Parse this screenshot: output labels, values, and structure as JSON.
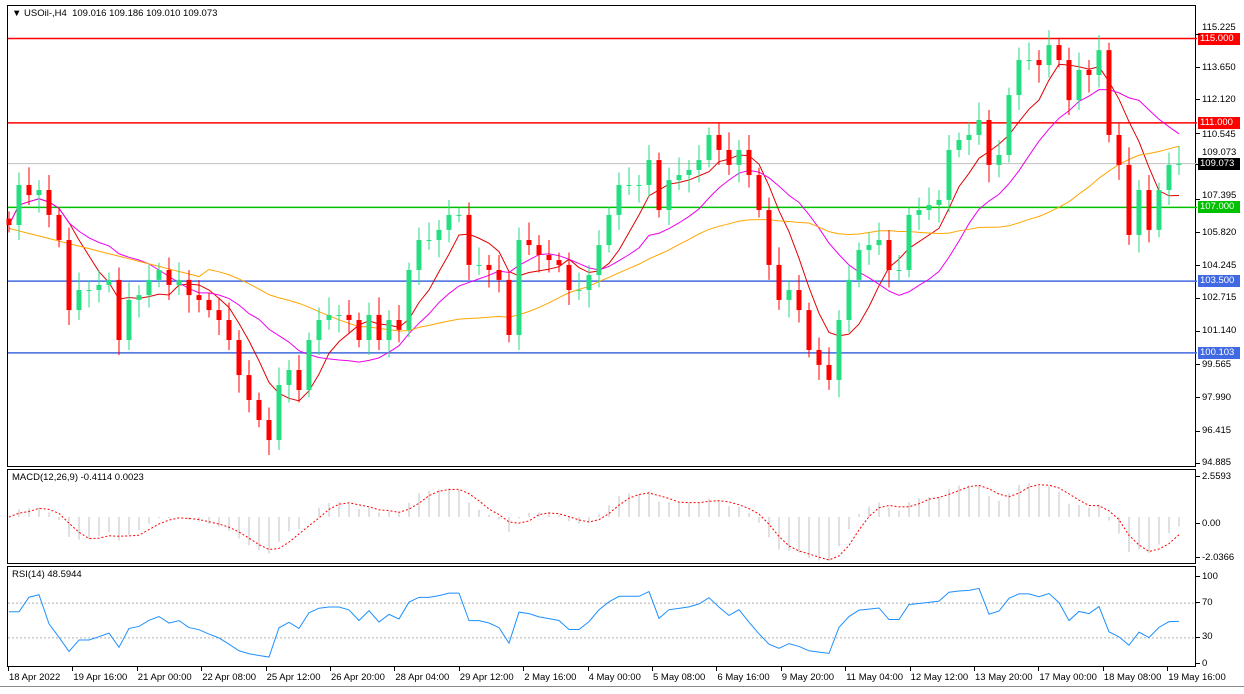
{
  "header": {
    "symbol": "USOil-,H4",
    "open": "109.016",
    "high": "109.186",
    "low": "109.010",
    "close": "109.073"
  },
  "colors": {
    "bull": "#26de81",
    "bear": "#ff0000",
    "ma_fast": "#e00000",
    "ma_mid": "#ee00ee",
    "ma_slow": "#ffa500",
    "macd_signal": "#ff0000",
    "macd_hist": "#c0c0c0",
    "rsi": "#1e90ff",
    "current": "#c0c0c0"
  },
  "price_axis": {
    "ticks": [
      "115.225",
      "113.650",
      "112.120",
      "110.545",
      "109.073",
      "107.395",
      "105.820",
      "104.245",
      "102.715",
      "101.140",
      "99.565",
      "97.990",
      "96.415",
      "94.885"
    ],
    "range": [
      94.885,
      115.225
    ]
  },
  "levels": [
    {
      "price": 115.0,
      "label": "115.000",
      "color": "#ff0000"
    },
    {
      "price": 111.0,
      "label": "111.000",
      "color": "#ff0000"
    },
    {
      "price": 107.0,
      "label": "107.000",
      "color": "#00c000"
    },
    {
      "price": 103.5,
      "label": "103.500",
      "color": "#4169e1"
    },
    {
      "price": 100.103,
      "label": "100.103",
      "color": "#4169e1"
    }
  ],
  "current_price": {
    "price": 109.073,
    "label": "109.073"
  },
  "macd": {
    "title": "MACD(12,26,9) -0.4114 0.0023",
    "ticks": [
      "2.5593",
      "0.00",
      "-2.0366"
    ]
  },
  "rsi": {
    "title": "RSI(14) 48.5944",
    "ticks": [
      "100",
      "70",
      "30",
      "0"
    ],
    "levels": [
      70,
      30
    ]
  },
  "time_axis": [
    "18 Apr 2022",
    "19 Apr 16:00",
    "21 Apr 00:00",
    "22 Apr 08:00",
    "25 Apr 12:00",
    "26 Apr 20:00",
    "28 Apr 04:00",
    "29 Apr 12:00",
    "2 May 16:00",
    "4 May 00:00",
    "5 May 08:00",
    "6 May 16:00",
    "9 May 20:00",
    "11 May 04:00",
    "12 May 12:00",
    "13 May 20:00",
    "17 May 00:00",
    "18 May 08:00",
    "19 May 16:00"
  ],
  "chart_data": {
    "type": "candlestick",
    "symbol": "USOil-",
    "timeframe": "H4",
    "closes": [
      106.16,
      108.06,
      107.58,
      107.82,
      106.64,
      105.45,
      102.13,
      103.08,
      103.08,
      103.32,
      103.56,
      100.71,
      102.61,
      102.84,
      103.56,
      104.03,
      103.32,
      103.56,
      102.84,
      102.61,
      102.13,
      101.66,
      100.71,
      99.05,
      97.87,
      96.92,
      95.97,
      98.58,
      99.29,
      98.34,
      100.71,
      101.66,
      101.9,
      101.9,
      101.66,
      100.71,
      101.9,
      100.71,
      101.66,
      101.19,
      104.03,
      105.45,
      105.45,
      105.93,
      106.64,
      106.64,
      104.27,
      104.27,
      104.03,
      103.56,
      100.95,
      105.45,
      105.21,
      104.74,
      104.5,
      104.27,
      103.08,
      103.08,
      103.79,
      105.21,
      106.64,
      108.06,
      108.06,
      108.06,
      109.24,
      106.87,
      108.29,
      108.53,
      108.77,
      109.24,
      110.43,
      109.72,
      109.01,
      109.72,
      108.53,
      106.87,
      104.27,
      102.61,
      103.08,
      102.13,
      100.24,
      99.53,
      98.82,
      101.66,
      103.56,
      104.98,
      105.21,
      105.45,
      104.03,
      104.03,
      106.64,
      106.87,
      107.11,
      107.35,
      109.72,
      110.19,
      110.43,
      111.14,
      109.01,
      109.48,
      112.32,
      113.98,
      113.98,
      113.74,
      114.69,
      113.98,
      112.08,
      113.51,
      113.27,
      114.45,
      110.43,
      109.01,
      105.69,
      107.82,
      105.93,
      107.82,
      109.01,
      109.073
    ]
  }
}
